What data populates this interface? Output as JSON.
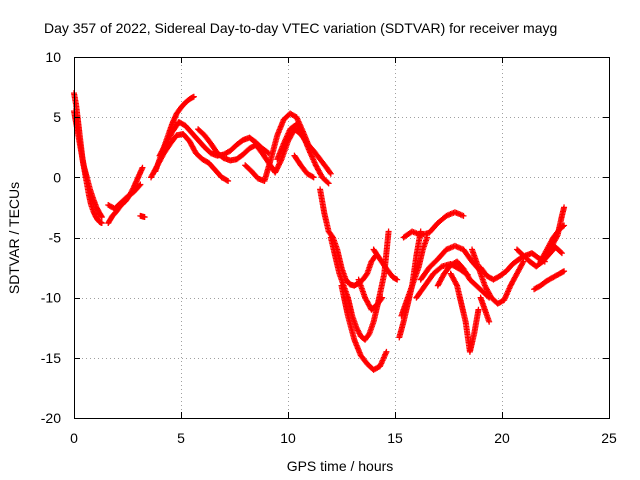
{
  "chart_data": {
    "type": "scatter",
    "title": "Day 357 of 2022, Sidereal Day-to-day VTEC variation (SDTVAR) for receiver mayg",
    "xlabel": "GPS time / hours",
    "ylabel": "SDTVAR / TECUs",
    "xlim": [
      0,
      25
    ],
    "ylim": [
      -20,
      10
    ],
    "xticks": [
      0,
      5,
      10,
      15,
      20,
      25
    ],
    "yticks": [
      -20,
      -15,
      -10,
      -5,
      0,
      5,
      10
    ],
    "grid": true,
    "marker": "plus",
    "color": "#ff0000",
    "series": [
      {
        "x": [
          0.0,
          0.1,
          0.2,
          0.3,
          0.4,
          0.5,
          0.6,
          0.7,
          0.8,
          0.9,
          1.0,
          1.1,
          1.2,
          1.3
        ],
        "y": [
          7.0,
          6.0,
          4.5,
          3.0,
          1.5,
          0.5,
          -0.5,
          -1.5,
          -2.3,
          -2.8,
          -3.2,
          -3.5,
          -3.7,
          -3.8
        ]
      },
      {
        "x": [
          0.0,
          0.15,
          0.3,
          0.45,
          0.6,
          0.75,
          0.9,
          1.05,
          1.2,
          1.3
        ],
        "y": [
          5.5,
          4.0,
          2.5,
          1.0,
          0.0,
          -1.0,
          -1.8,
          -2.5,
          -3.0,
          -3.3
        ]
      },
      {
        "x": [
          1.6,
          1.8,
          2.0,
          2.2,
          2.4,
          2.6,
          2.8,
          3.0,
          3.2
        ],
        "y": [
          -3.8,
          -3.2,
          -2.8,
          -2.3,
          -2.0,
          -1.5,
          -0.8,
          0.0,
          0.8
        ]
      },
      {
        "x": [
          1.6,
          1.9,
          2.2,
          2.5,
          2.8,
          3.1
        ],
        "y": [
          -2.3,
          -2.6,
          -2.1,
          -1.6,
          -1.2,
          -0.6
        ]
      },
      {
        "x": [
          3.1,
          3.3
        ],
        "y": [
          -3.2,
          -3.3
        ]
      },
      {
        "x": [
          3.8,
          4.0,
          4.2,
          4.4,
          4.6,
          4.8,
          5.0,
          5.2,
          5.4,
          5.6
        ],
        "y": [
          0.5,
          1.5,
          2.5,
          3.5,
          4.5,
          5.3,
          5.8,
          6.2,
          6.5,
          6.7
        ]
      },
      {
        "x": [
          3.6,
          3.9,
          4.2,
          4.5,
          4.8,
          5.1,
          5.4,
          5.7,
          6.0,
          6.3,
          6.6,
          6.9,
          7.2
        ],
        "y": [
          0.0,
          1.0,
          2.0,
          2.8,
          3.5,
          3.6,
          3.0,
          2.0,
          1.5,
          1.2,
          0.6,
          0.0,
          -0.3
        ]
      },
      {
        "x": [
          4.0,
          4.3,
          4.6,
          4.9,
          5.2,
          5.5,
          5.8,
          6.1,
          6.4,
          6.7,
          7.0,
          7.3,
          7.6,
          7.9,
          8.2,
          8.5,
          8.8,
          9.1
        ],
        "y": [
          1.8,
          2.8,
          3.8,
          4.6,
          4.3,
          3.7,
          3.1,
          2.5,
          2.0,
          1.8,
          1.9,
          2.2,
          2.7,
          3.1,
          3.3,
          2.9,
          2.4,
          2.0
        ]
      },
      {
        "x": [
          5.8,
          6.1,
          6.4,
          6.7,
          7.0,
          7.3,
          7.6,
          7.9,
          8.2,
          8.5,
          8.8,
          9.1,
          9.4,
          9.7,
          10.0,
          10.3,
          10.6,
          10.9,
          11.2,
          11.5,
          11.8,
          12.0
        ],
        "y": [
          4.0,
          3.5,
          2.8,
          2.0,
          1.6,
          1.4,
          1.5,
          1.9,
          2.4,
          2.7,
          2.0,
          1.2,
          0.4,
          1.5,
          3.0,
          4.0,
          3.6,
          2.8,
          2.2,
          1.5,
          0.8,
          0.3
        ]
      },
      {
        "x": [
          8.0,
          8.3,
          8.6,
          8.9,
          9.2,
          9.5,
          9.8,
          10.1,
          10.4,
          10.7,
          11.0
        ],
        "y": [
          1.0,
          0.5,
          -0.1,
          -0.3,
          1.5,
          3.5,
          4.8,
          5.3,
          5.0,
          3.8,
          2.5
        ]
      },
      {
        "x": [
          9.5,
          9.8,
          10.1,
          10.4,
          10.7,
          11.0,
          11.3,
          11.6,
          11.9
        ],
        "y": [
          1.5,
          2.8,
          4.0,
          4.4,
          3.5,
          2.2,
          1.0,
          0.0,
          -0.5
        ]
      },
      {
        "x": [
          10.3,
          10.6,
          10.9,
          11.2
        ],
        "y": [
          1.8,
          1.0,
          0.3,
          0.0
        ]
      },
      {
        "x": [
          11.5,
          11.7,
          11.9,
          12.1,
          12.3,
          12.5,
          12.7,
          12.9,
          13.1,
          13.3,
          13.5,
          13.7,
          13.9,
          14.1
        ],
        "y": [
          -1.0,
          -3.0,
          -4.5,
          -5.0,
          -6.0,
          -7.5,
          -8.5,
          -8.9,
          -9.0,
          -8.8,
          -8.5,
          -8.0,
          -7.0,
          -6.5
        ]
      },
      {
        "x": [
          12.0,
          12.2,
          12.4,
          12.6,
          12.8,
          13.0,
          13.2,
          13.4,
          13.6,
          13.8,
          14.0,
          14.2,
          14.4
        ],
        "y": [
          -5.0,
          -6.5,
          -8.0,
          -9.0,
          -10.0,
          -11.5,
          -12.5,
          -13.2,
          -13.5,
          -13.0,
          -12.0,
          -10.5,
          -10.0
        ]
      },
      {
        "x": [
          12.5,
          12.8,
          13.1,
          13.4,
          13.7,
          14.0,
          14.3,
          14.6
        ],
        "y": [
          -9.0,
          -11.5,
          -13.5,
          -14.8,
          -15.5,
          -16.0,
          -15.7,
          -14.5
        ]
      },
      {
        "x": [
          13.3,
          13.6,
          13.9,
          14.2,
          14.5,
          14.7
        ],
        "y": [
          -8.5,
          -10.0,
          -11.0,
          -10.5,
          -8.0,
          -4.5
        ]
      },
      {
        "x": [
          14.0,
          14.3,
          14.6,
          14.9,
          15.1
        ],
        "y": [
          -6.0,
          -6.8,
          -7.6,
          -8.3,
          -8.5
        ]
      },
      {
        "x": [
          15.2,
          15.4,
          15.6,
          15.8,
          16.0,
          16.2
        ],
        "y": [
          -13.3,
          -12.0,
          -10.5,
          -9.0,
          -6.5,
          -4.5
        ]
      },
      {
        "x": [
          15.3,
          15.5,
          15.7,
          15.9,
          16.1,
          16.3,
          16.5
        ],
        "y": [
          -11.5,
          -10.5,
          -9.5,
          -8.5,
          -7.5,
          -6.0,
          -5.0
        ]
      },
      {
        "x": [
          15.4,
          15.8,
          16.2,
          16.6,
          17.0,
          17.4,
          17.8,
          18.2
        ],
        "y": [
          -5.0,
          -4.5,
          -4.8,
          -4.6,
          -3.8,
          -3.2,
          -2.9,
          -3.2
        ]
      },
      {
        "x": [
          16.0,
          16.4,
          16.8,
          17.2,
          17.6,
          18.0,
          18.4
        ],
        "y": [
          -10.0,
          -9.0,
          -8.0,
          -7.4,
          -7.2,
          -7.6,
          -8.1
        ]
      },
      {
        "x": [
          16.2,
          16.6,
          17.0,
          17.4,
          17.8,
          18.2,
          18.6,
          19.0
        ],
        "y": [
          -8.5,
          -7.5,
          -6.8,
          -6.0,
          -5.7,
          -6.0,
          -7.0,
          -7.8
        ]
      },
      {
        "x": [
          17.0,
          17.3,
          17.6,
          17.9,
          18.2,
          18.5,
          18.8,
          19.1,
          19.4
        ],
        "y": [
          -9.0,
          -8.0,
          -7.3,
          -7.0,
          -7.6,
          -8.5,
          -9.0,
          -9.5,
          -10.0
        ]
      },
      {
        "x": [
          17.6,
          17.9,
          18.1,
          18.3,
          18.5,
          18.7,
          18.9
        ],
        "y": [
          -8.0,
          -9.0,
          -10.5,
          -12.0,
          -14.5,
          -13.0,
          -11.0
        ]
      },
      {
        "x": [
          18.6,
          18.9,
          19.2,
          19.5,
          19.8,
          20.1,
          20.4,
          20.7,
          21.0
        ],
        "y": [
          -6.0,
          -7.5,
          -9.0,
          -10.0,
          -10.5,
          -10.2,
          -9.0,
          -8.0,
          -7.0
        ]
      },
      {
        "x": [
          19.0,
          19.3,
          19.6,
          19.9,
          20.2,
          20.5,
          20.8,
          21.1,
          21.4,
          21.7,
          22.0
        ],
        "y": [
          -7.5,
          -8.2,
          -8.5,
          -8.2,
          -7.8,
          -7.2,
          -6.8,
          -6.5,
          -6.3,
          -6.7,
          -7.0
        ]
      },
      {
        "x": [
          19.0,
          19.2,
          19.4
        ],
        "y": [
          -10.0,
          -11.0,
          -12.0
        ]
      },
      {
        "x": [
          20.7,
          21.0,
          21.3,
          21.6,
          21.9,
          22.2,
          22.5,
          22.8
        ],
        "y": [
          -6.0,
          -6.5,
          -7.0,
          -7.4,
          -7.0,
          -6.4,
          -5.8,
          -6.3
        ]
      },
      {
        "x": [
          21.5,
          21.8,
          22.1,
          22.4,
          22.7,
          22.9
        ],
        "y": [
          -9.3,
          -9.0,
          -8.6,
          -8.3,
          -8.0,
          -7.8
        ]
      },
      {
        "x": [
          21.8,
          22.1,
          22.4,
          22.7,
          22.9
        ],
        "y": [
          -7.0,
          -6.0,
          -5.0,
          -4.3,
          -4.0
        ]
      },
      {
        "x": [
          22.0,
          22.3,
          22.6,
          22.8,
          22.9
        ],
        "y": [
          -6.5,
          -5.8,
          -4.8,
          -3.2,
          -2.5
        ]
      }
    ]
  }
}
